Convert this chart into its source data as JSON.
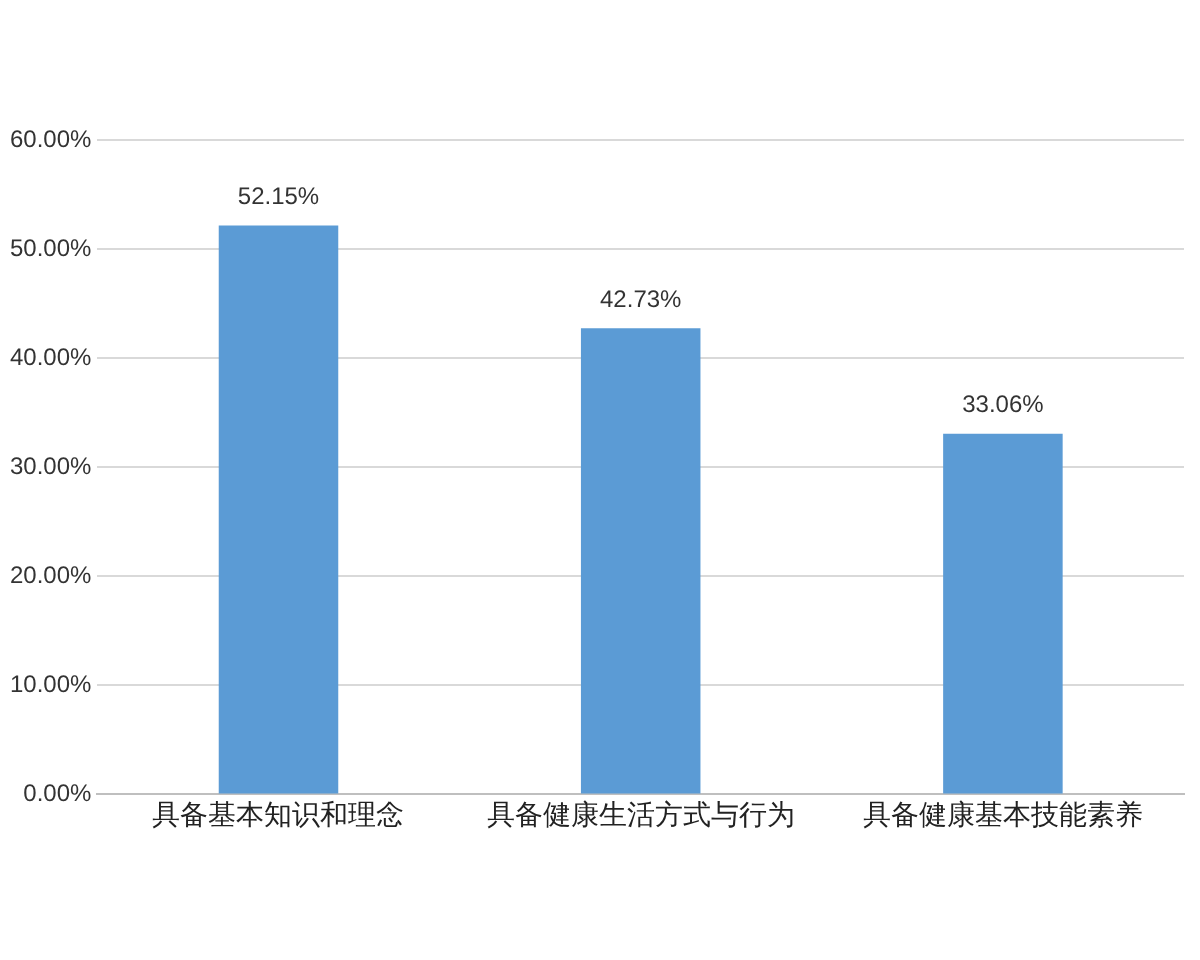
{
  "chart_data": {
    "type": "bar",
    "categories": [
      "具备基本知识和理念",
      "具备健康生活方式与行为",
      "具备健康基本技能素养"
    ],
    "values": [
      52.15,
      42.73,
      33.06
    ],
    "color": "#5b9bd5",
    "value_labels": [
      "52.15%",
      "42.73%",
      "33.06%"
    ],
    "ylim": [
      0,
      60
    ],
    "yticks": [
      {
        "value": 0,
        "label": "0.00%"
      },
      {
        "value": 10,
        "label": "10.00%"
      },
      {
        "value": 20,
        "label": "20.00%"
      },
      {
        "value": 30,
        "label": "30.00%"
      },
      {
        "value": 40,
        "label": "40.00%"
      },
      {
        "value": 50,
        "label": "50.00%"
      },
      {
        "value": 60,
        "label": "60.00%"
      }
    ],
    "grid": "y",
    "legend": false
  }
}
